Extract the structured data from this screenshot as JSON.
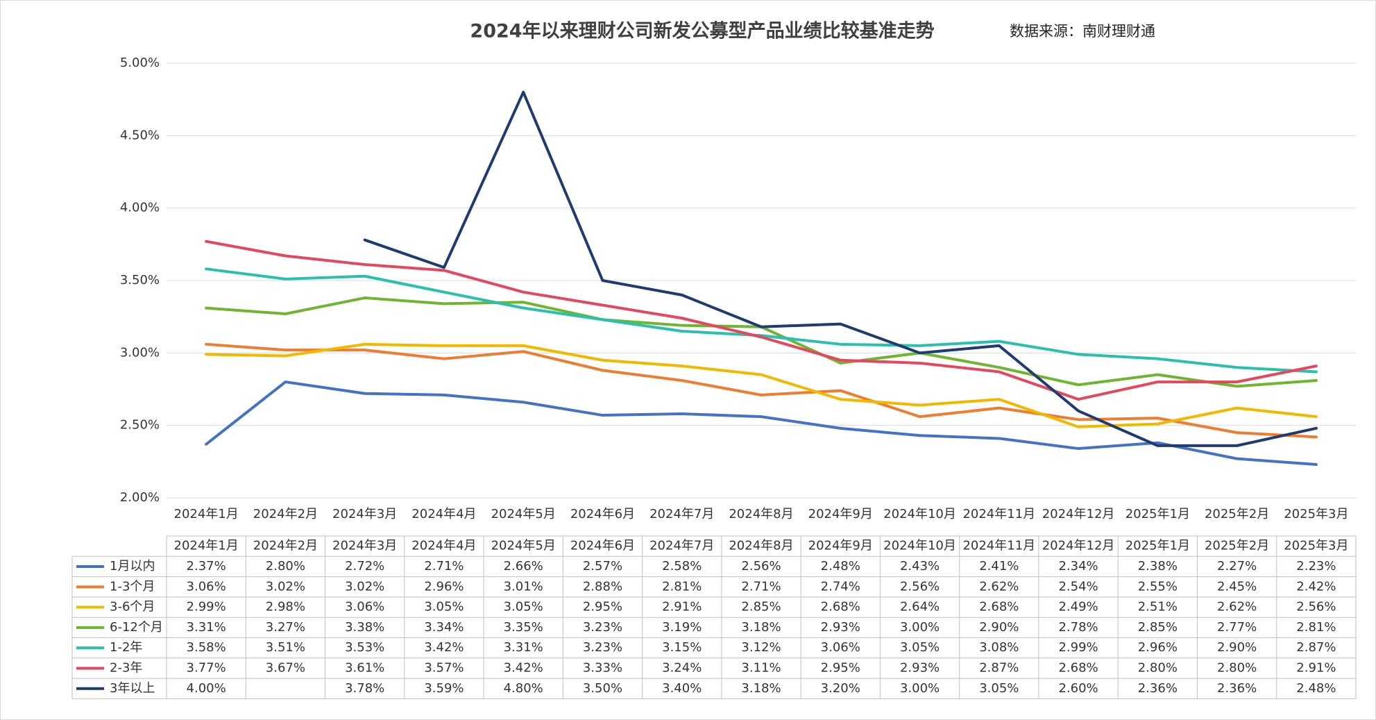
{
  "chart_data": {
    "type": "line",
    "title": "2024年以来理财公司新发公募型产品业绩比较基准走势",
    "source": "数据来源：南财理财通",
    "categories": [
      "2024年1月",
      "2024年2月",
      "2024年3月",
      "2024年4月",
      "2024年5月",
      "2024年6月",
      "2024年7月",
      "2024年8月",
      "2024年9月",
      "2024年10月",
      "2024年11月",
      "2024年12月",
      "2025年1月",
      "2025年2月",
      "2025年3月"
    ],
    "ylim": [
      2.0,
      5.0
    ],
    "yticks": [
      {
        "value": 2.0,
        "label": "2.00%"
      },
      {
        "value": 2.5,
        "label": "2.50%"
      },
      {
        "value": 3.0,
        "label": "3.00%"
      },
      {
        "value": 3.5,
        "label": "3.50%"
      },
      {
        "value": 4.0,
        "label": "4.00%"
      },
      {
        "value": 4.5,
        "label": "4.50%"
      },
      {
        "value": 5.0,
        "label": "5.00%"
      }
    ],
    "grid": true,
    "series": [
      {
        "name": "1月以内",
        "color": "#4472c4",
        "values": [
          2.37,
          2.8,
          2.72,
          2.71,
          2.66,
          2.57,
          2.58,
          2.56,
          2.48,
          2.43,
          2.41,
          2.34,
          2.38,
          2.27,
          2.23
        ],
        "value_labels": [
          "2.37%",
          "2.80%",
          "2.72%",
          "2.71%",
          "2.66%",
          "2.57%",
          "2.58%",
          "2.56%",
          "2.48%",
          "2.43%",
          "2.41%",
          "2.34%",
          "2.38%",
          "2.27%",
          "2.23%"
        ]
      },
      {
        "name": "1-3个月",
        "color": "#ed7d31",
        "values": [
          3.06,
          3.02,
          3.02,
          2.96,
          3.01,
          2.88,
          2.81,
          2.71,
          2.74,
          2.56,
          2.62,
          2.54,
          2.55,
          2.45,
          2.42
        ],
        "value_labels": [
          "3.06%",
          "3.02%",
          "3.02%",
          "2.96%",
          "3.01%",
          "2.88%",
          "2.81%",
          "2.71%",
          "2.74%",
          "2.56%",
          "2.62%",
          "2.54%",
          "2.55%",
          "2.45%",
          "2.42%"
        ]
      },
      {
        "name": "3-6个月",
        "color": "#f2b800",
        "values": [
          2.99,
          2.98,
          3.06,
          3.05,
          3.05,
          2.95,
          2.91,
          2.85,
          2.68,
          2.64,
          2.68,
          2.49,
          2.51,
          2.62,
          2.56
        ],
        "value_labels": [
          "2.99%",
          "2.98%",
          "3.06%",
          "3.05%",
          "3.05%",
          "2.95%",
          "2.91%",
          "2.85%",
          "2.68%",
          "2.64%",
          "2.68%",
          "2.49%",
          "2.51%",
          "2.62%",
          "2.56%"
        ]
      },
      {
        "name": "6-12个月",
        "color": "#6fb52f",
        "values": [
          3.31,
          3.27,
          3.38,
          3.34,
          3.35,
          3.23,
          3.19,
          3.18,
          2.93,
          3.0,
          2.9,
          2.78,
          2.85,
          2.77,
          2.81
        ],
        "value_labels": [
          "3.31%",
          "3.27%",
          "3.38%",
          "3.34%",
          "3.35%",
          "3.23%",
          "3.19%",
          "3.18%",
          "2.93%",
          "3.00%",
          "2.90%",
          "2.78%",
          "2.85%",
          "2.77%",
          "2.81%"
        ]
      },
      {
        "name": "1-2年",
        "color": "#2bbfad",
        "values": [
          3.58,
          3.51,
          3.53,
          3.42,
          3.31,
          3.23,
          3.15,
          3.12,
          3.06,
          3.05,
          3.08,
          2.99,
          2.96,
          2.9,
          2.87
        ],
        "value_labels": [
          "3.58%",
          "3.51%",
          "3.53%",
          "3.42%",
          "3.31%",
          "3.23%",
          "3.15%",
          "3.12%",
          "3.06%",
          "3.05%",
          "3.08%",
          "2.99%",
          "2.96%",
          "2.90%",
          "2.87%"
        ]
      },
      {
        "name": "2-3年",
        "color": "#e4485e",
        "values": [
          3.77,
          3.67,
          3.61,
          3.57,
          3.42,
          3.33,
          3.24,
          3.11,
          2.95,
          2.93,
          2.87,
          2.68,
          2.8,
          2.8,
          2.91
        ],
        "value_labels": [
          "3.77%",
          "3.67%",
          "3.61%",
          "3.57%",
          "3.42%",
          "3.33%",
          "3.24%",
          "3.11%",
          "2.95%",
          "2.93%",
          "2.87%",
          "2.68%",
          "2.80%",
          "2.80%",
          "2.91%"
        ]
      },
      {
        "name": "3年以上",
        "color": "#203a72",
        "values": [
          4.0,
          null,
          3.78,
          3.59,
          4.8,
          3.5,
          3.4,
          3.18,
          3.2,
          3.0,
          3.05,
          2.6,
          2.36,
          2.36,
          2.48
        ],
        "value_labels": [
          "4.00%",
          null,
          "3.78%",
          "3.59%",
          "4.80%",
          "3.50%",
          "3.40%",
          "3.18%",
          "3.20%",
          "3.00%",
          "3.05%",
          "2.60%",
          "2.36%",
          "2.36%",
          "2.48%"
        ]
      }
    ]
  }
}
